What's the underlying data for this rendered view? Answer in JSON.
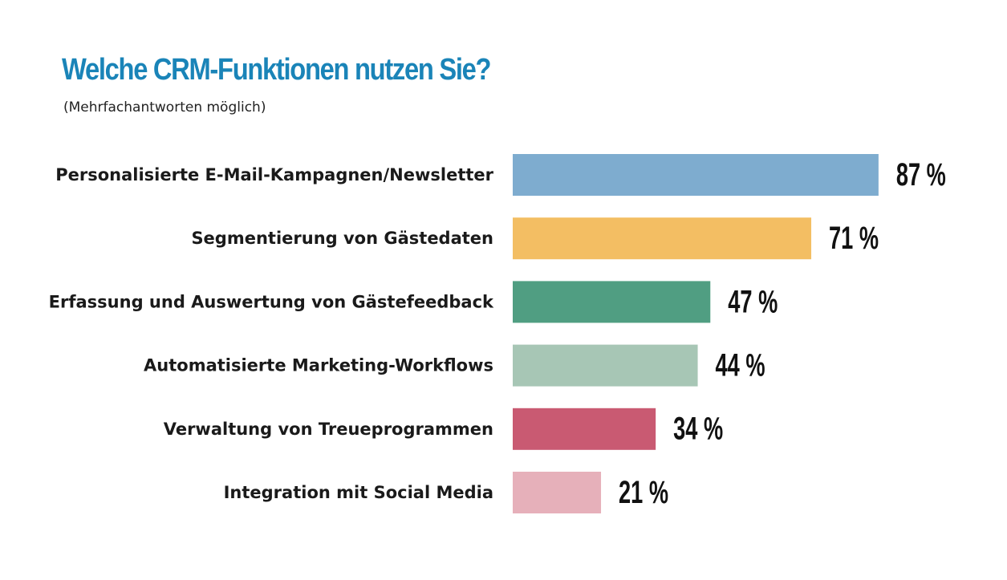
{
  "chart_data": {
    "type": "bar",
    "orientation": "horizontal",
    "title": "Welche CRM-Funktionen nutzen Sie?",
    "subtitle": "(Mehrfachantworten möglich)",
    "categories": [
      "Personalisierte E-Mail-Kampagnen/Newsletter",
      "Segmentierung von Gästedaten",
      "Erfassung und Auswertung von Gästefeedback",
      "Automatisierte Marketing-Workflows",
      "Verwaltung von Treueprogrammen",
      "Integration mit Social Media"
    ],
    "values": [
      87,
      71,
      47,
      44,
      34,
      21
    ],
    "value_labels": [
      "87 %",
      "71 %",
      "47 %",
      "44 %",
      "34 %",
      "21 %"
    ],
    "colors": [
      "#7eaccf",
      "#f3be63",
      "#509e82",
      "#a7c6b5",
      "#c95a72",
      "#e6b0ba"
    ],
    "unit": "%",
    "xlim": [
      0,
      100
    ],
    "grid": false,
    "legend": "none"
  }
}
